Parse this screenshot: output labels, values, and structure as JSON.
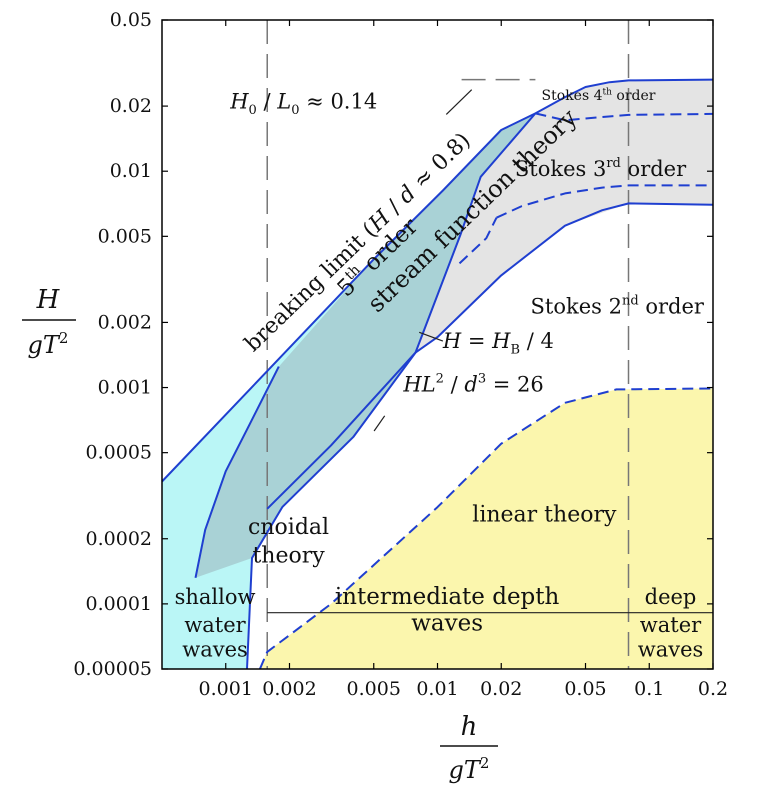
{
  "chart_data": {
    "type": "area",
    "title": "",
    "xlabel": {
      "num": "h",
      "den_base": "gT",
      "den_exp": "2"
    },
    "ylabel": {
      "num": "H",
      "den_base": "gT",
      "den_exp": "2"
    },
    "x_scale": "log",
    "y_scale": "log",
    "xlim": [
      0.0005,
      0.2
    ],
    "ylim": [
      5e-05,
      0.05
    ],
    "grid": false,
    "x_ticks": [
      {
        "value": 0.001,
        "label": "0.001"
      },
      {
        "value": 0.002,
        "label": "0.002"
      },
      {
        "value": 0.005,
        "label": "0.005"
      },
      {
        "value": 0.01,
        "label": "0.01"
      },
      {
        "value": 0.02,
        "label": "0.02"
      },
      {
        "value": 0.05,
        "label": "0.05"
      },
      {
        "value": 0.1,
        "label": "0.1"
      },
      {
        "value": 0.2,
        "label": "0.2"
      }
    ],
    "y_ticks": [
      {
        "value": 0.05,
        "label": "0.05"
      },
      {
        "value": 0.02,
        "label": "0.02"
      },
      {
        "value": 0.01,
        "label": "0.01"
      },
      {
        "value": 0.005,
        "label": "0.005"
      },
      {
        "value": 0.002,
        "label": "0.002"
      },
      {
        "value": 0.001,
        "label": "0.001"
      },
      {
        "value": 0.0005,
        "label": "0.0005"
      },
      {
        "value": 0.0002,
        "label": "0.0002"
      },
      {
        "value": 0.0001,
        "label": "0.0001"
      },
      {
        "value": 5e-05,
        "label": "0.00005"
      }
    ],
    "colors": {
      "line": "#1f3fd0",
      "cyan": "#baf6f6",
      "teal": "#a9d2d6",
      "gray": "#e4e4e4",
      "yellow": "#fbf6ad",
      "dash": "#777777"
    },
    "depth_limits": [
      {
        "name": "shallow-limit",
        "h": 0.00157
      },
      {
        "name": "deep-limit",
        "h": 0.0798
      }
    ],
    "regions": [
      {
        "name": "linear-theory-region",
        "color": "yellow",
        "points": [
          [
            0.00145,
            5e-05
          ],
          [
            0.00157,
            6e-05
          ],
          [
            0.00314,
            0.0001
          ],
          [
            0.01,
            0.00028
          ],
          [
            0.02,
            0.00055
          ],
          [
            0.04,
            0.00085
          ],
          [
            0.07,
            0.00098
          ],
          [
            0.2,
            0.00099
          ],
          [
            0.2,
            5e-05
          ]
        ]
      },
      {
        "name": "cnoidal-region",
        "color": "cyan",
        "points": [
          [
            0.0005,
            5e-05
          ],
          [
            0.0005,
            0.000368
          ],
          [
            0.00503,
            0.00394
          ],
          [
            0.0106,
            0.00814
          ],
          [
            0.02,
            0.0155
          ],
          [
            0.029,
            0.0185
          ],
          [
            0.016,
            0.00942
          ],
          [
            0.0128,
            0.00505
          ],
          [
            0.00787,
            0.00145
          ],
          [
            0.004,
            0.00059
          ],
          [
            0.00185,
            0.00028
          ],
          [
            0.00133,
            0.000163
          ],
          [
            0.00126,
            5e-05
          ]
        ]
      },
      {
        "name": "stokes-region",
        "color": "gray",
        "points": [
          [
            0.029,
            0.0185
          ],
          [
            0.05,
            0.0245
          ],
          [
            0.08,
            0.0263
          ],
          [
            0.2,
            0.0265
          ],
          [
            0.2,
            0.007
          ],
          [
            0.08,
            0.0071
          ],
          [
            0.04,
            0.0056
          ],
          [
            0.02,
            0.0033
          ],
          [
            0.01,
            0.00171
          ],
          [
            0.00787,
            0.00145
          ],
          [
            0.0128,
            0.00505
          ],
          [
            0.016,
            0.00942
          ]
        ]
      },
      {
        "name": "stream-function-region",
        "color": "teal",
        "points": [
          [
            0.00072,
            0.000132
          ],
          [
            0.0008,
            0.00022
          ],
          [
            0.001,
            0.00041
          ],
          [
            0.0013,
            0.00068
          ],
          [
            0.00178,
            0.00125
          ],
          [
            0.00503,
            0.00394
          ],
          [
            0.0106,
            0.00814
          ],
          [
            0.02,
            0.0155
          ],
          [
            0.029,
            0.0185
          ],
          [
            0.016,
            0.00942
          ],
          [
            0.0128,
            0.00505
          ],
          [
            0.00787,
            0.00145
          ],
          [
            0.004,
            0.00059
          ],
          [
            0.00185,
            0.00028
          ],
          [
            0.00133,
            0.000163
          ],
          [
            0.00072,
            0.000132
          ]
        ]
      }
    ],
    "curves": [
      {
        "name": "breaking-limit-curve",
        "style": "solid",
        "points": [
          [
            0.0005,
            0.000368
          ],
          [
            0.00503,
            0.00394
          ],
          [
            0.0106,
            0.00814
          ],
          [
            0.02,
            0.0155
          ],
          [
            0.029,
            0.0185
          ],
          [
            0.04,
            0.022
          ],
          [
            0.05,
            0.0245
          ],
          [
            0.065,
            0.0258
          ],
          [
            0.08,
            0.0263
          ],
          [
            0.2,
            0.0265
          ]
        ]
      },
      {
        "name": "stokes-fourth-order-curve",
        "style": "dashed",
        "points": [
          [
            0.029,
            0.0185
          ],
          [
            0.04,
            0.0172
          ],
          [
            0.06,
            0.0178
          ],
          [
            0.08,
            0.0182
          ],
          [
            0.2,
            0.0184
          ]
        ]
      },
      {
        "name": "stokes-third-order-curve",
        "style": "dashed",
        "points": [
          [
            0.019,
            0.0061
          ],
          [
            0.025,
            0.0069
          ],
          [
            0.04,
            0.0079
          ],
          [
            0.06,
            0.0084
          ],
          [
            0.08,
            0.0086
          ],
          [
            0.2,
            0.0086
          ]
        ]
      },
      {
        "name": "stokes-second-order-curve",
        "style": "solid",
        "points": [
          [
            0.00157,
            0.000275
          ],
          [
            0.00314,
            0.00054
          ],
          [
            0.00787,
            0.00145
          ],
          [
            0.01,
            0.00171
          ],
          [
            0.02,
            0.0033
          ],
          [
            0.04,
            0.0056
          ],
          [
            0.06,
            0.0066
          ],
          [
            0.08,
            0.0071
          ],
          [
            0.2,
            0.007
          ]
        ]
      },
      {
        "name": "stokes-dashed-lower-curve",
        "style": "dashed",
        "points": [
          [
            0.0127,
            0.00375
          ],
          [
            0.017,
            0.0049
          ],
          [
            0.019,
            0.0061
          ]
        ]
      },
      {
        "name": "ursell-curve",
        "style": "solid",
        "points": [
          [
            0.00126,
            5e-05
          ],
          [
            0.00133,
            0.000163
          ],
          [
            0.00185,
            0.00028
          ],
          [
            0.004,
            0.00059
          ],
          [
            0.00787,
            0.00145
          ],
          [
            0.0128,
            0.00505
          ],
          [
            0.016,
            0.00942
          ],
          [
            0.029,
            0.0185
          ]
        ]
      },
      {
        "name": "stream-function-left-curve",
        "style": "solid",
        "points": [
          [
            0.00072,
            0.000132
          ],
          [
            0.0008,
            0.00022
          ],
          [
            0.001,
            0.00041
          ],
          [
            0.0013,
            0.00068
          ],
          [
            0.00178,
            0.00125
          ]
        ]
      },
      {
        "name": "linear-limit-curve",
        "style": "dashed",
        "points": [
          [
            0.00145,
            5e-05
          ],
          [
            0.00157,
            6e-05
          ],
          [
            0.00314,
            0.0001
          ],
          [
            0.01,
            0.00028
          ],
          [
            0.02,
            0.00055
          ],
          [
            0.04,
            0.00085
          ],
          [
            0.07,
            0.00098
          ],
          [
            0.2,
            0.00099
          ]
        ]
      },
      {
        "name": "deep-water-limit-curve",
        "style": "dashed-gray",
        "points": [
          [
            0.013,
            0.0265
          ],
          [
            0.021,
            0.0265
          ],
          [
            0.029,
            0.0265
          ]
        ]
      }
    ],
    "annotations": [
      {
        "name": "breaking-limit-label",
        "x": 0.00135,
        "y": 0.00145,
        "rot": -44,
        "size": 22,
        "segments": [
          {
            "t": "breaking limit ("
          },
          {
            "t": "H",
            "style": "italic"
          },
          {
            "t": " / "
          },
          {
            "t": "d",
            "style": "italic"
          },
          {
            "t": " ≈ 0.8)"
          }
        ]
      },
      {
        "name": "fifth-order-label",
        "x": 0.00372,
        "y": 0.0026,
        "rot": -44,
        "size": 23,
        "segments": [
          {
            "t": "5"
          },
          {
            "t": "th",
            "sup": true
          },
          {
            "t": " order"
          }
        ]
      },
      {
        "name": "stream-function-label",
        "x": 0.0052,
        "y": 0.0022,
        "rot": -44,
        "size": 24,
        "segments": [
          {
            "t": "stream function theory"
          }
        ]
      },
      {
        "name": "steepness-label",
        "x": 0.00105,
        "y": 0.0195,
        "rot": 0,
        "size": 21,
        "segments": [
          {
            "t": "H",
            "style": "italic"
          },
          {
            "t": "0",
            "sub": true
          },
          {
            "t": " / "
          },
          {
            "t": "L",
            "style": "italic"
          },
          {
            "t": "0",
            "sub": true
          },
          {
            "t": " ≈ 0.14"
          }
        ]
      },
      {
        "name": "stokes-fourth-label",
        "x": 0.031,
        "y": 0.0213,
        "rot": 0,
        "size": 14,
        "segments": [
          {
            "t": "Stokes 4"
          },
          {
            "t": "th",
            "sup": true
          },
          {
            "t": " order"
          }
        ]
      },
      {
        "name": "stokes-third-label",
        "x": 0.0232,
        "y": 0.0095,
        "rot": 0,
        "size": 21,
        "segments": [
          {
            "t": "Stokes 3"
          },
          {
            "t": "rd",
            "sup": true
          },
          {
            "t": " order"
          }
        ]
      },
      {
        "name": "stokes-second-label",
        "x": 0.0275,
        "y": 0.0022,
        "rot": 0,
        "size": 21,
        "segments": [
          {
            "t": "Stokes 2"
          },
          {
            "t": "nd",
            "sup": true
          },
          {
            "t": " order"
          }
        ]
      },
      {
        "name": "hb-label",
        "x": 0.0106,
        "y": 0.00152,
        "rot": 0,
        "size": 21,
        "segments": [
          {
            "t": "H",
            "style": "italic"
          },
          {
            "t": " = "
          },
          {
            "t": "H",
            "style": "italic"
          },
          {
            "t": "B",
            "sub": true
          },
          {
            "t": " / 4"
          }
        ]
      },
      {
        "name": "ursell-label",
        "x": 0.0069,
        "y": 0.00096,
        "rot": 0,
        "size": 21,
        "segments": [
          {
            "t": "H",
            "style": "italic"
          },
          {
            "t": "L",
            "style": "italic"
          },
          {
            "t": "2",
            "sup": true
          },
          {
            "t": " / "
          },
          {
            "t": "d",
            "style": "italic"
          },
          {
            "t": "3",
            "sup": true
          },
          {
            "t": " = 26"
          }
        ]
      },
      {
        "name": "linear-theory-label",
        "x": 0.0146,
        "y": 0.00024,
        "rot": 0,
        "size": 22,
        "anchor": "start",
        "segments": [
          {
            "t": "linear theory"
          }
        ]
      },
      {
        "name": "cnoidal-label-1",
        "x": 0.00198,
        "y": 0.00021,
        "rot": 0,
        "size": 22,
        "anchor": "middle",
        "segments": [
          {
            "t": "cnoidal"
          }
        ]
      },
      {
        "name": "cnoidal-label-2",
        "x": 0.00198,
        "y": 0.000155,
        "rot": 0,
        "size": 22,
        "anchor": "middle",
        "segments": [
          {
            "t": "theory"
          }
        ]
      },
      {
        "name": "shallow-label-1",
        "x": 0.00089,
        "y": 0.0001,
        "rot": 0,
        "size": 21,
        "anchor": "middle",
        "segments": [
          {
            "t": "shallow"
          }
        ]
      },
      {
        "name": "shallow-label-2",
        "x": 0.00089,
        "y": 7.4e-05,
        "rot": 0,
        "size": 21,
        "anchor": "middle",
        "segments": [
          {
            "t": "water"
          }
        ]
      },
      {
        "name": "shallow-label-3",
        "x": 0.00089,
        "y": 5.7e-05,
        "rot": 0,
        "size": 21,
        "anchor": "middle",
        "segments": [
          {
            "t": "waves"
          }
        ]
      },
      {
        "name": "intermediate-label-1",
        "x": 0.0111,
        "y": 0.0001,
        "rot": 0,
        "size": 23,
        "anchor": "middle",
        "segments": [
          {
            "t": "intermediate depth"
          }
        ]
      },
      {
        "name": "intermediate-label-2",
        "x": 0.0111,
        "y": 7.52e-05,
        "rot": 0,
        "size": 23,
        "anchor": "middle",
        "segments": [
          {
            "t": "waves"
          }
        ]
      },
      {
        "name": "deep-label-1",
        "x": 0.126,
        "y": 0.0001,
        "rot": 0,
        "size": 21,
        "anchor": "middle",
        "segments": [
          {
            "t": "deep"
          }
        ]
      },
      {
        "name": "deep-label-2",
        "x": 0.126,
        "y": 7.4e-05,
        "rot": 0,
        "size": 21,
        "anchor": "middle",
        "segments": [
          {
            "t": "water"
          }
        ]
      },
      {
        "name": "deep-label-3",
        "x": 0.126,
        "y": 5.7e-05,
        "rot": 0,
        "size": 21,
        "anchor": "middle",
        "segments": [
          {
            "t": "waves"
          }
        ]
      }
    ],
    "leader_lines": [
      {
        "name": "steepness-leader",
        "points": [
          [
            0.011,
            0.0183
          ],
          [
            0.0145,
            0.0238
          ]
        ]
      },
      {
        "name": "hb-leader",
        "points": [
          [
            0.0106,
            0.00164
          ],
          [
            0.0082,
            0.0018
          ]
        ]
      },
      {
        "name": "ursell-leader",
        "points": [
          [
            0.00563,
            0.00074
          ],
          [
            0.00502,
            0.00063
          ]
        ]
      },
      {
        "name": "depth-divider-line",
        "points": [
          [
            0.00157,
            9.1e-05
          ],
          [
            0.2,
            9.1e-05
          ]
        ]
      }
    ]
  }
}
